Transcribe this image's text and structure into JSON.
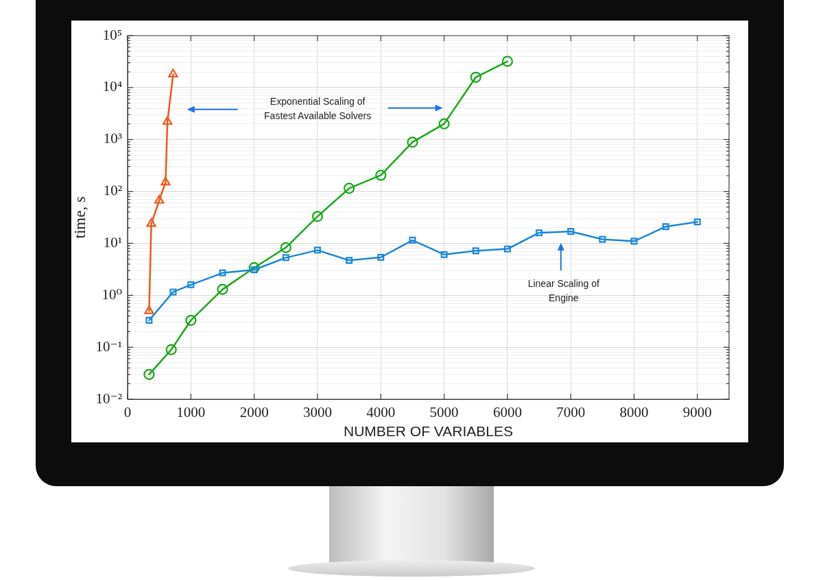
{
  "chart_data": {
    "type": "line",
    "xlabel": "NUMBER OF VARIABLES",
    "ylabel": "time, s",
    "xlim": [
      0,
      9500
    ],
    "xticks": [
      0,
      1000,
      2000,
      3000,
      4000,
      5000,
      6000,
      7000,
      8000,
      9000
    ],
    "ylim": [
      0.01,
      100000
    ],
    "yticks": [
      {
        "value": 0.01,
        "label": "10⁻²"
      },
      {
        "value": 0.02,
        "label": null
      },
      {
        "value": 0.03,
        "label": null
      },
      {
        "value": 0.04,
        "label": null
      },
      {
        "value": 0.05,
        "label": null
      },
      {
        "value": 0.06,
        "label": null
      },
      {
        "value": 0.07,
        "label": null
      },
      {
        "value": 0.08,
        "label": null
      },
      {
        "value": 0.09,
        "label": null
      },
      {
        "value": 0.1,
        "label": "10⁻¹"
      },
      {
        "value": 0.2,
        "label": null
      },
      {
        "value": 0.3,
        "label": null
      },
      {
        "value": 0.4,
        "label": null
      },
      {
        "value": 0.5,
        "label": null
      },
      {
        "value": 0.6,
        "label": null
      },
      {
        "value": 0.7,
        "label": null
      },
      {
        "value": 0.8,
        "label": null
      },
      {
        "value": 0.9,
        "label": null
      },
      {
        "value": 1,
        "label": "10⁰"
      },
      {
        "value": 2,
        "label": null
      },
      {
        "value": 3,
        "label": null
      },
      {
        "value": 4,
        "label": null
      },
      {
        "value": 5,
        "label": null
      },
      {
        "value": 6,
        "label": null
      },
      {
        "value": 7,
        "label": null
      },
      {
        "value": 8,
        "label": null
      },
      {
        "value": 9,
        "label": null
      },
      {
        "value": 10,
        "label": "10¹"
      },
      {
        "value": 20,
        "label": null
      },
      {
        "value": 30,
        "label": null
      },
      {
        "value": 40,
        "label": null
      },
      {
        "value": 50,
        "label": null
      },
      {
        "value": 60,
        "label": null
      },
      {
        "value": 70,
        "label": null
      },
      {
        "value": 80,
        "label": null
      },
      {
        "value": 90,
        "label": null
      },
      {
        "value": 100,
        "label": "10²"
      },
      {
        "value": 200,
        "label": null
      },
      {
        "value": 300,
        "label": null
      },
      {
        "value": 400,
        "label": null
      },
      {
        "value": 500,
        "label": null
      },
      {
        "value": 600,
        "label": null
      },
      {
        "value": 700,
        "label": null
      },
      {
        "value": 800,
        "label": null
      },
      {
        "value": 900,
        "label": null
      },
      {
        "value": 1000,
        "label": "10³"
      },
      {
        "value": 2000,
        "label": null
      },
      {
        "value": 3000,
        "label": null
      },
      {
        "value": 4000,
        "label": null
      },
      {
        "value": 5000,
        "label": null
      },
      {
        "value": 6000,
        "label": null
      },
      {
        "value": 7000,
        "label": null
      },
      {
        "value": 8000,
        "label": null
      },
      {
        "value": 9000,
        "label": null
      },
      {
        "value": 10000,
        "label": "10⁴"
      },
      {
        "value": 20000,
        "label": null
      },
      {
        "value": 30000,
        "label": null
      },
      {
        "value": 40000,
        "label": null
      },
      {
        "value": 50000,
        "label": null
      },
      {
        "value": 60000,
        "label": null
      },
      {
        "value": 70000,
        "label": null
      },
      {
        "value": 80000,
        "label": null
      },
      {
        "value": 90000,
        "label": null
      },
      {
        "value": 100000,
        "label": "10⁵"
      }
    ],
    "log": "y",
    "grid": true,
    "series": [
      {
        "color": "#f2561d",
        "marker": "triangle",
        "x": [
          340,
          375,
          500,
          600,
          630,
          720
        ],
        "values": [
          0.5,
          24,
          67,
          150,
          2200,
          18000
        ]
      },
      {
        "color": "#1a86d8",
        "marker": "square",
        "x": [
          340,
          720,
          1000,
          1500,
          2000,
          2500,
          3000,
          3500,
          4000,
          4500,
          5000,
          5500,
          6000,
          6500,
          7000,
          7500,
          8000,
          8500,
          9000
        ],
        "values": [
          0.33,
          1.16,
          1.6,
          2.7,
          3.1,
          5.3,
          7.4,
          4.7,
          5.4,
          11.5,
          6.1,
          7.2,
          7.8,
          16,
          17,
          12,
          11,
          21,
          26
        ]
      },
      {
        "color": "#18a818",
        "marker": "circle",
        "x": [
          340,
          690,
          1000,
          1500,
          2000,
          2500,
          3000,
          3500,
          4000,
          4500,
          5000,
          5500,
          6000
        ],
        "values": [
          0.03,
          0.09,
          0.33,
          1.3,
          3.4,
          8.3,
          33,
          115,
          205,
          890,
          2000,
          15800,
          32000
        ]
      }
    ],
    "annotations": [
      "Exponential Scaling of\nFastest Available Solvers",
      "Linear Scaling of\nEngine"
    ]
  }
}
